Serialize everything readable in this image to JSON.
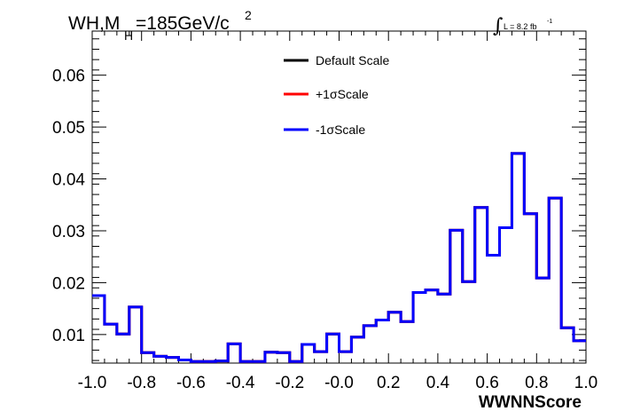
{
  "chart_data": {
    "type": "line",
    "title": {
      "main": "WH,M",
      "sub": "H",
      "rest": "=185GeV/c",
      "sup": "2"
    },
    "lumi": {
      "symbol": "∫",
      "text": "L = 8.2 fb",
      "sup": "-1"
    },
    "xlabel": "WWNNScore",
    "ylabel": "",
    "xlim": [
      -1.0,
      1.0
    ],
    "ylim": [
      0.0045,
      0.0685
    ],
    "xticks": [
      "-1.0",
      "-0.8",
      "-0.6",
      "-0.4",
      "-0.2",
      "-0.0",
      "0.2",
      "0.4",
      "0.6",
      "0.8",
      "1.0"
    ],
    "yticks": [
      "0.01",
      "0.02",
      "0.03",
      "0.04",
      "0.05",
      "0.06"
    ],
    "grid": false,
    "legend_position": "top-center",
    "bin_edges": [
      -1.0,
      -0.95,
      -0.9,
      -0.85,
      -0.8,
      -0.75,
      -0.7,
      -0.65,
      -0.6,
      -0.55,
      -0.5,
      -0.45,
      -0.4,
      -0.35,
      -0.3,
      -0.25,
      -0.2,
      -0.15,
      -0.1,
      -0.05,
      0.0,
      0.05,
      0.1,
      0.15,
      0.2,
      0.25,
      0.3,
      0.35,
      0.4,
      0.45,
      0.5,
      0.55,
      0.6,
      0.65,
      0.7,
      0.75,
      0.8,
      0.85,
      0.9,
      0.95,
      1.0
    ],
    "series": [
      {
        "name": "Default Scale",
        "color": "#000000",
        "values": [
          0.0175,
          0.012,
          0.0101,
          0.0153,
          0.0065,
          0.0058,
          0.0056,
          0.0051,
          0.0048,
          0.0048,
          0.0049,
          0.0082,
          0.0048,
          0.0048,
          0.0066,
          0.0065,
          0.0048,
          0.0081,
          0.0067,
          0.0101,
          0.0067,
          0.0095,
          0.0117,
          0.0128,
          0.0143,
          0.0125,
          0.0181,
          0.0186,
          0.0178,
          0.0301,
          0.0202,
          0.0345,
          0.0253,
          0.0306,
          0.0449,
          0.0333,
          0.0209,
          0.0363,
          0.0113,
          0.0088
        ]
      },
      {
        "name": "+1σScale",
        "color": "#ff0000",
        "values": [
          0.0175,
          0.012,
          0.0101,
          0.0153,
          0.0065,
          0.0058,
          0.0056,
          0.0051,
          0.0048,
          0.0048,
          0.0049,
          0.0082,
          0.0048,
          0.0048,
          0.0066,
          0.0065,
          0.0048,
          0.0081,
          0.0067,
          0.0101,
          0.0067,
          0.0095,
          0.0117,
          0.0128,
          0.0143,
          0.0125,
          0.0181,
          0.0186,
          0.0178,
          0.0301,
          0.0202,
          0.0345,
          0.0253,
          0.0306,
          0.0449,
          0.0333,
          0.0209,
          0.0363,
          0.0113,
          0.0088
        ]
      },
      {
        "name": "-1σScale",
        "color": "#0000ff",
        "values": [
          0.0175,
          0.012,
          0.0101,
          0.0153,
          0.0065,
          0.0058,
          0.0056,
          0.0051,
          0.0048,
          0.0048,
          0.0049,
          0.0082,
          0.0048,
          0.0048,
          0.0066,
          0.0065,
          0.0048,
          0.0081,
          0.0067,
          0.0101,
          0.0067,
          0.0095,
          0.0117,
          0.0128,
          0.0143,
          0.0125,
          0.0181,
          0.0186,
          0.0178,
          0.0301,
          0.0202,
          0.0345,
          0.0253,
          0.0306,
          0.0449,
          0.0333,
          0.0209,
          0.0363,
          0.0113,
          0.0088
        ]
      }
    ]
  }
}
